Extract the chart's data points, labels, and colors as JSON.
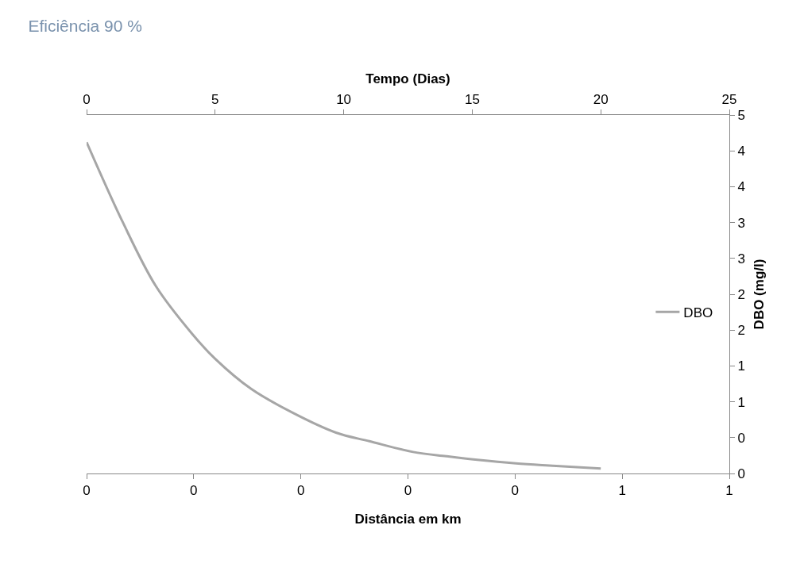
{
  "chart_data": {
    "type": "line",
    "title": "Eficiência 90 %",
    "xlabel": "Tempo (Dias)",
    "x2label": "Distância em km",
    "y2label": "DBO (mg/l)",
    "xlim": [
      0,
      25
    ],
    "xticks": [
      0,
      5,
      10,
      15,
      20,
      25
    ],
    "x2lim": [
      0,
      0.6
    ],
    "x2ticks": [
      {
        "value": 0,
        "label": "0"
      },
      {
        "value": 0.1,
        "label": "0"
      },
      {
        "value": 0.2,
        "label": "0"
      },
      {
        "value": 0.3,
        "label": "0"
      },
      {
        "value": 0.4,
        "label": "0"
      },
      {
        "value": 0.5,
        "label": "1"
      },
      {
        "value": 0.6,
        "label": "1"
      }
    ],
    "y2lim": [
      0,
      5
    ],
    "y2ticks": [
      {
        "value": 0,
        "label": "0"
      },
      {
        "value": 0.5,
        "label": "0"
      },
      {
        "value": 1,
        "label": "1"
      },
      {
        "value": 1.5,
        "label": "1"
      },
      {
        "value": 2,
        "label": "2"
      },
      {
        "value": 2.5,
        "label": "2"
      },
      {
        "value": 3,
        "label": "3"
      },
      {
        "value": 3.5,
        "label": "3"
      },
      {
        "value": 4,
        "label": "4"
      },
      {
        "value": 4.5,
        "label": "4"
      },
      {
        "value": 5,
        "label": "5"
      }
    ],
    "x": [
      0,
      1.4,
      2.7,
      4.1,
      5,
      6.4,
      8,
      9.7,
      11,
      12.7,
      14,
      15.2,
      16.7,
      18,
      20
    ],
    "series": [
      {
        "name": "DBO",
        "color": "#a6a6a6",
        "axis": "y2",
        "values": [
          4.62,
          3.51,
          2.61,
          1.95,
          1.6,
          1.18,
          0.85,
          0.57,
          0.45,
          0.3,
          0.24,
          0.19,
          0.14,
          0.11,
          0.07
        ]
      }
    ],
    "grid": false,
    "legend": "right",
    "marker": "none",
    "line_style": "solid"
  }
}
